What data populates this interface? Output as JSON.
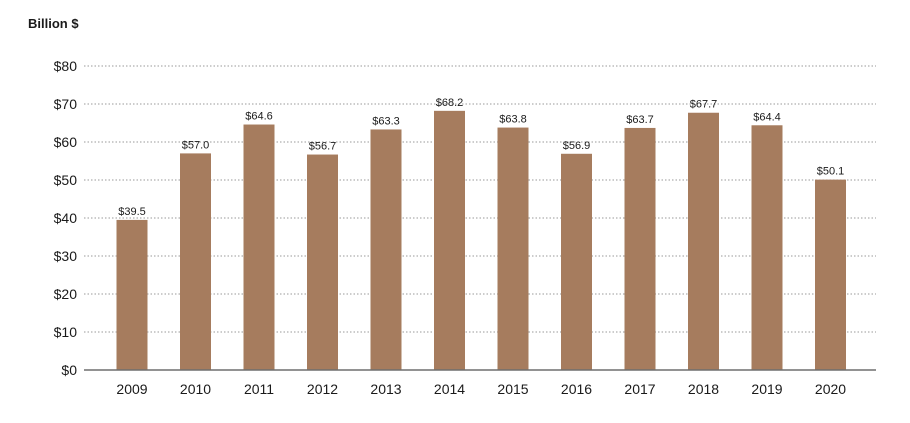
{
  "chart_data": {
    "type": "bar",
    "title": "",
    "ylabel": "Billion $",
    "xlabel": "",
    "categories": [
      "2009",
      "2010",
      "2011",
      "2012",
      "2013",
      "2014",
      "2015",
      "2016",
      "2017",
      "2018",
      "2019",
      "2020"
    ],
    "values": [
      39.5,
      57.0,
      64.6,
      56.7,
      63.3,
      68.2,
      63.8,
      56.9,
      63.7,
      67.7,
      64.4,
      50.1
    ],
    "data_labels": [
      "$39.5",
      "$57.0",
      "$64.6",
      "$56.7",
      "$63.3",
      "$68.2",
      "$63.8",
      "$56.9",
      "$63.7",
      "$67.7",
      "$64.4",
      "$50.1"
    ],
    "y_ticks": [
      0,
      10,
      20,
      30,
      40,
      50,
      60,
      70,
      80
    ],
    "y_tick_labels": [
      "$0",
      "$10",
      "$20",
      "$30",
      "$40",
      "$50",
      "$60",
      "$70",
      "$80"
    ],
    "ylim": [
      0,
      80
    ],
    "grid": true,
    "legend": "none",
    "bar_color": "#a67c5e"
  }
}
